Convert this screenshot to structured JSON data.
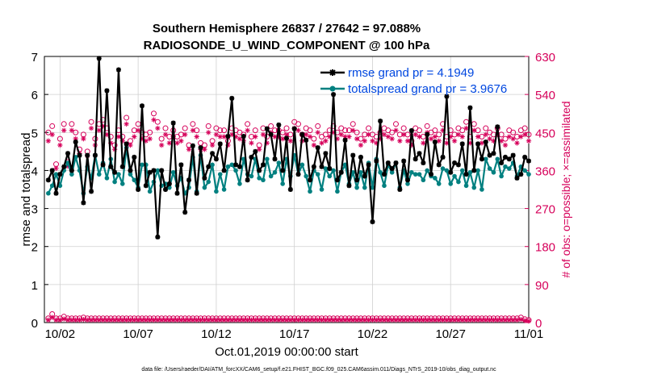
{
  "chart_data": {
    "type": "line",
    "title": "Southern Hemisphere 26837 / 27642 = 97.088%",
    "subtitle": "RADIOSONDE_U_WIND_COMPONENT @ 100 hPa",
    "xlabel": "Oct.01,2019 00:00:00 start",
    "ylabel": "rmse and totalspread",
    "y2label": "# of obs: o=possible; ×=assimilated",
    "xlim": [
      1,
      32
    ],
    "ylim": [
      0,
      7
    ],
    "y2lim": [
      0,
      630
    ],
    "x_tick_values": [
      2,
      7,
      12,
      17,
      22,
      27,
      32
    ],
    "x_tick_labels": [
      "10/02",
      "10/07",
      "10/12",
      "10/17",
      "10/22",
      "10/27",
      "11/01"
    ],
    "y_ticks": [
      0,
      1,
      2,
      3,
      4,
      5,
      6,
      7
    ],
    "y2_ticks": [
      0,
      90,
      180,
      270,
      360,
      450,
      540,
      630
    ],
    "grid": true,
    "legend_placement": "top-right",
    "legend": {
      "rmse": "rmse grand pr = 4.1949",
      "spread": "totalspread grand pr = 3.9676"
    },
    "colors": {
      "rmse": "#000000",
      "spread": "#008080",
      "obs": "#d6005a",
      "grid": "#d0d0d0",
      "legend_text": "#0047e0"
    },
    "x": [
      1.25,
      1.5,
      1.75,
      2.0,
      2.25,
      2.5,
      2.75,
      3.0,
      3.25,
      3.5,
      3.75,
      4.0,
      4.25,
      4.5,
      4.75,
      5.0,
      5.25,
      5.5,
      5.75,
      6.0,
      6.25,
      6.5,
      6.75,
      7.0,
      7.25,
      7.5,
      7.75,
      8.0,
      8.25,
      8.5,
      8.75,
      9.0,
      9.25,
      9.5,
      9.75,
      10.0,
      10.25,
      10.5,
      10.75,
      11.0,
      11.25,
      11.5,
      11.75,
      12.0,
      12.25,
      12.5,
      12.75,
      13.0,
      13.25,
      13.5,
      13.75,
      14.0,
      14.25,
      14.5,
      14.75,
      15.0,
      15.25,
      15.5,
      15.75,
      16.0,
      16.25,
      16.5,
      16.75,
      17.0,
      17.25,
      17.5,
      17.75,
      18.0,
      18.25,
      18.5,
      18.75,
      19.0,
      19.25,
      19.5,
      19.75,
      20.0,
      20.25,
      20.5,
      20.75,
      21.0,
      21.25,
      21.5,
      21.75,
      22.0,
      22.25,
      22.5,
      22.75,
      23.0,
      23.25,
      23.5,
      23.75,
      24.0,
      24.25,
      24.5,
      24.75,
      25.0,
      25.25,
      25.5,
      25.75,
      26.0,
      26.25,
      26.5,
      26.75,
      27.0,
      27.25,
      27.5,
      27.75,
      28.0,
      28.25,
      28.5,
      28.75,
      29.0,
      29.25,
      29.5,
      29.75,
      30.0,
      30.25,
      30.5,
      30.75,
      31.0,
      31.25,
      31.5,
      31.75,
      32.0
    ],
    "rmse": [
      3.75,
      4.0,
      3.4,
      3.9,
      4.1,
      4.45,
      4.0,
      4.75,
      4.4,
      3.15,
      4.4,
      3.45,
      4.4,
      6.95,
      4.15,
      6.1,
      4.1,
      3.95,
      6.65,
      4.1,
      4.7,
      4.0,
      4.35,
      3.5,
      5.7,
      3.6,
      3.95,
      4.0,
      2.25,
      4.0,
      3.5,
      3.65,
      5.25,
      3.4,
      4.15,
      2.9,
      3.75,
      4.65,
      3.4,
      4.6,
      3.8,
      4.1,
      4.45,
      4.3,
      4.7,
      4.0,
      4.9,
      5.9,
      4.15,
      4.1,
      4.9,
      3.75,
      4.35,
      4.5,
      4.0,
      4.15,
      5.1,
      4.95,
      4.3,
      5.2,
      4.0,
      4.85,
      3.5,
      5.1,
      3.9,
      4.95,
      4.8,
      3.75,
      4.1,
      4.6,
      4.1,
      4.45,
      4.05,
      6.0,
      3.75,
      3.95,
      4.8,
      3.6,
      4.4,
      3.75,
      4.35,
      3.85,
      4.15,
      2.65,
      4.25,
      5.3,
      3.9,
      4.2,
      4.05,
      4.2,
      3.5,
      4.25,
      3.75,
      5.05,
      4.3,
      4.45,
      4.2,
      4.95,
      3.9,
      4.75,
      4.15,
      4.35,
      5.95,
      3.95,
      4.2,
      4.15,
      4.7,
      3.9,
      5.65,
      4.0,
      4.7,
      4.3,
      4.75,
      4.4,
      4.45,
      5.15,
      4.2,
      4.35,
      4.3,
      4.4,
      3.8,
      3.9,
      4.35,
      4.25
    ],
    "spread": [
      3.4,
      3.6,
      3.9,
      3.6,
      4.0,
      4.2,
      3.9,
      4.35,
      4.0,
      3.4,
      4.1,
      3.8,
      4.4,
      3.9,
      4.2,
      3.8,
      4.3,
      3.7,
      3.9,
      3.65,
      4.6,
      3.9,
      3.75,
      3.55,
      4.15,
      4.15,
      3.45,
      3.7,
      4.0,
      3.6,
      3.65,
      3.55,
      3.95,
      3.6,
      3.8,
      3.4,
      3.55,
      4.35,
      3.45,
      4.4,
      3.55,
      3.7,
      4.15,
      3.45,
      3.9,
      3.5,
      4.1,
      4.15,
      4.0,
      3.65,
      4.3,
      3.9,
      3.85,
      4.3,
      3.8,
      3.75,
      4.3,
      3.85,
      3.95,
      4.2,
      3.65,
      4.3,
      3.85,
      4.4,
      3.9,
      4.15,
      3.85,
      3.45,
      4.0,
      3.9,
      3.5,
      4.05,
      3.85,
      4.0,
      3.45,
      3.95,
      4.15,
      3.65,
      3.95,
      3.55,
      3.95,
      3.55,
      4.2,
      3.55,
      4.3,
      3.95,
      3.6,
      4.15,
      3.95,
      4.2,
      3.55,
      4.0,
      3.65,
      3.95,
      3.9,
      3.9,
      3.75,
      4.0,
      3.85,
      3.8,
      3.65,
      4.05,
      4.0,
      3.65,
      3.85,
      3.7,
      4.0,
      3.6,
      3.95,
      3.55,
      4.0,
      3.5,
      4.3,
      4.05,
      3.95,
      4.3,
      3.85,
      4.1,
      4.05,
      4.2,
      3.85,
      4.1,
      4.0,
      3.9
    ],
    "obs_possible": [
      450,
      465,
      375,
      435,
      470,
      380,
      470,
      450,
      410,
      445,
      405,
      475,
      435,
      470,
      480,
      460,
      440,
      420,
      455,
      440,
      485,
      430,
      455,
      470,
      450,
      445,
      450,
      495,
      475,
      435,
      460,
      440,
      455,
      440,
      445,
      460,
      420,
      470,
      455,
      425,
      420,
      465,
      430,
      460,
      455,
      455,
      430,
      460,
      455,
      450,
      445,
      470,
      440,
      455,
      420,
      460,
      440,
      465,
      455,
      455,
      450,
      460,
      445,
      475,
      470,
      445,
      460,
      455,
      435,
      465,
      440,
      445,
      455,
      465,
      450,
      460,
      455,
      455,
      470,
      450,
      435,
      445,
      460,
      445,
      440,
      450,
      460,
      455,
      450,
      470,
      445,
      460,
      445,
      430,
      460,
      455,
      440,
      465,
      450,
      455,
      445,
      470,
      440,
      455,
      445,
      460,
      455,
      475,
      440,
      470,
      455,
      440,
      460,
      450,
      445,
      460,
      445,
      435,
      455,
      450,
      440,
      455,
      460,
      445
    ],
    "obs_assimilated": [
      430,
      445,
      365,
      420,
      455,
      370,
      455,
      435,
      400,
      435,
      395,
      460,
      420,
      455,
      465,
      445,
      425,
      410,
      440,
      430,
      470,
      420,
      440,
      455,
      435,
      430,
      435,
      480,
      460,
      420,
      445,
      425,
      440,
      425,
      430,
      445,
      410,
      455,
      440,
      410,
      410,
      450,
      420,
      445,
      440,
      440,
      420,
      445,
      440,
      435,
      430,
      455,
      425,
      440,
      410,
      445,
      425,
      450,
      440,
      440,
      435,
      445,
      430,
      460,
      455,
      430,
      445,
      440,
      420,
      450,
      425,
      430,
      440,
      450,
      435,
      445,
      440,
      440,
      455,
      435,
      420,
      430,
      445,
      430,
      425,
      435,
      445,
      440,
      435,
      455,
      430,
      445,
      430,
      420,
      445,
      440,
      425,
      450,
      435,
      440,
      430,
      455,
      425,
      440,
      430,
      445,
      440,
      460,
      425,
      455,
      440,
      425,
      445,
      435,
      430,
      445,
      430,
      420,
      440,
      435,
      425,
      440,
      445,
      430
    ],
    "obs_bottom_possible": [
      10,
      20,
      10,
      10,
      14,
      10,
      10,
      10,
      10,
      12,
      10,
      10,
      10,
      10,
      10,
      10,
      10,
      10,
      10,
      10,
      10,
      10,
      10,
      10,
      10,
      10,
      10,
      10,
      10,
      10,
      10,
      10,
      10,
      10,
      10,
      10,
      10,
      10,
      10,
      10,
      10,
      10,
      10,
      10,
      10,
      10,
      10,
      10,
      10,
      10,
      10,
      10,
      10,
      10,
      10,
      10,
      10,
      10,
      10,
      10,
      10,
      10,
      10,
      10,
      10,
      10,
      10,
      10,
      10,
      10,
      10,
      10,
      10,
      10,
      10,
      10,
      10,
      10,
      10,
      10,
      10,
      10,
      10,
      10,
      10,
      10,
      10,
      10,
      10,
      10,
      10,
      10,
      10,
      10,
      10,
      10,
      10,
      10,
      10,
      10,
      10,
      10,
      10,
      10,
      10,
      10,
      10,
      10,
      10,
      10,
      10,
      10,
      10,
      10,
      10,
      10,
      10,
      10,
      10,
      10,
      10,
      12,
      8,
      6
    ],
    "footnote": "data file: /Users/raeder/DAI/ATM_forcXX/CAM6_setup/f.e21.FHIST_BGC.f09_025.CAM6assim.011/Diags_NTrS_2019-10/obs_diag_output.nc"
  }
}
